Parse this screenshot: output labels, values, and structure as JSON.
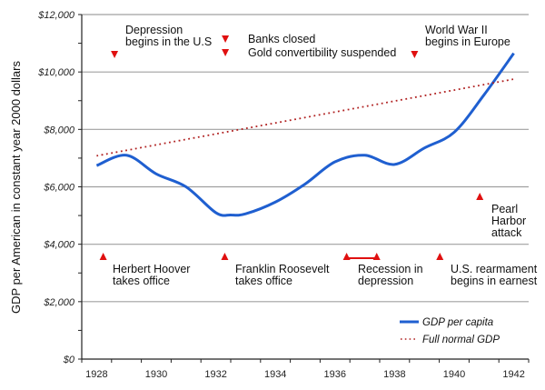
{
  "chart_data": {
    "type": "line",
    "title": "",
    "xlabel": "",
    "ylabel": "GDP per American in constant year 2000 dollars",
    "xlim": [
      1928,
      1942
    ],
    "ylim": [
      0,
      12000
    ],
    "grid": true,
    "x_ticks": [
      "1928",
      "1930",
      "1932",
      "1934",
      "1936",
      "1938",
      "1940",
      "1942"
    ],
    "y_ticks": [
      "$0",
      "$2,000",
      "$4,000",
      "$6,000",
      "$8,000",
      "$10,000",
      "$12,000"
    ],
    "y_tick_values": [
      0,
      2000,
      4000,
      6000,
      8000,
      10000,
      12000
    ],
    "legend_position": "bottom-right",
    "series": [
      {
        "name": "GDP per capita",
        "style": "solid",
        "color": "#1f5fd0",
        "x": [
          1928,
          1929,
          1930,
          1931,
          1932,
          1932.5,
          1933,
          1934,
          1935,
          1936,
          1937,
          1938,
          1939,
          1940,
          1941,
          1942
        ],
        "values": [
          6740,
          7100,
          6450,
          6000,
          5100,
          5020,
          5060,
          5470,
          6100,
          6870,
          7100,
          6780,
          7350,
          7900,
          9200,
          10650
        ]
      },
      {
        "name": "Full normal GDP",
        "style": "dotted",
        "color": "#b02020",
        "x": [
          1928,
          1942
        ],
        "values": [
          7080,
          9750
        ]
      }
    ],
    "annotations": [
      {
        "lines": [
          "Depression",
          "begins in the U.S"
        ],
        "marker": "down",
        "x": 1929.1
      },
      {
        "lines": [
          "Banks closed"
        ],
        "marker": "down",
        "x": 1932.82
      },
      {
        "lines": [
          "Gold convertibility suspended"
        ],
        "marker": "down",
        "x": 1932.82
      },
      {
        "lines": [
          "World War II",
          "begins in Europe"
        ],
        "marker": "down",
        "x": 1939.17
      },
      {
        "lines": [
          "Pearl",
          "Harbor",
          "attack"
        ],
        "marker": "up",
        "x": 1941.36
      },
      {
        "lines": [
          "Herbert Hoover",
          "takes office"
        ],
        "marker": "up",
        "x": 1928.72
      },
      {
        "lines": [
          "Franklin Roosevelt",
          "takes office"
        ],
        "marker": "up",
        "x": 1932.8
      },
      {
        "lines": [
          "Recession in",
          "depression"
        ],
        "marker": "up-range",
        "x": 1936.89,
        "x2": 1937.9
      },
      {
        "lines": [
          "U.S. rearmament",
          "begins in earnest"
        ],
        "marker": "up",
        "x": 1940.02
      }
    ],
    "marker_color": "#e01010"
  }
}
